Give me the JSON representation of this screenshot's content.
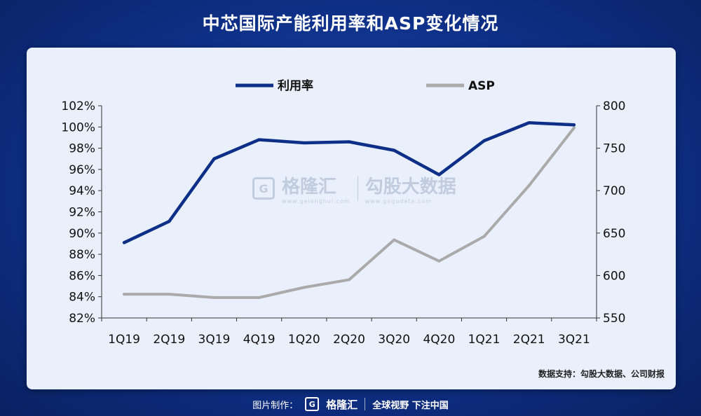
{
  "title": "中芯国际产能利用率和ASP变化情况",
  "source_note": "数据支持：勾股大数据、公司财报",
  "footer": {
    "made_by": "图片制作：",
    "brand": "格隆汇",
    "slogan": "全球视野 下注中国",
    "badge": "G"
  },
  "watermark": {
    "badge": "G",
    "brand": "格隆汇",
    "brand_url": "www.gelonghui.com",
    "product": "勾股大数据",
    "product_url": "www.gogudata.com"
  },
  "colors": {
    "utilization": "#0d2f87",
    "asp": "#aaaaaa",
    "card_bg": "#e9f0fb"
  },
  "chart_data": {
    "type": "line",
    "categories": [
      "1Q19",
      "2Q19",
      "3Q19",
      "4Q19",
      "1Q20",
      "2Q20",
      "3Q20",
      "4Q20",
      "1Q21",
      "2Q21",
      "3Q21"
    ],
    "series": [
      {
        "name": "利用率",
        "axis": "left",
        "values": [
          89.1,
          91.1,
          97.0,
          98.8,
          98.5,
          98.6,
          97.8,
          95.5,
          98.7,
          100.4,
          100.2
        ]
      },
      {
        "name": "ASP",
        "axis": "right",
        "values": [
          578,
          578,
          574,
          574,
          586,
          595,
          642,
          617,
          646,
          706,
          774
        ]
      }
    ],
    "y_left": {
      "min": 82,
      "max": 102,
      "step": 2,
      "suffix": "%",
      "ticks": [
        "82%",
        "84%",
        "86%",
        "88%",
        "90%",
        "92%",
        "94%",
        "96%",
        "98%",
        "100%",
        "102%"
      ]
    },
    "y_right": {
      "min": 550,
      "max": 800,
      "step": 50,
      "ticks": [
        "550",
        "600",
        "650",
        "700",
        "750",
        "800"
      ]
    },
    "legend": {
      "position": "top-center"
    },
    "grid": false
  }
}
